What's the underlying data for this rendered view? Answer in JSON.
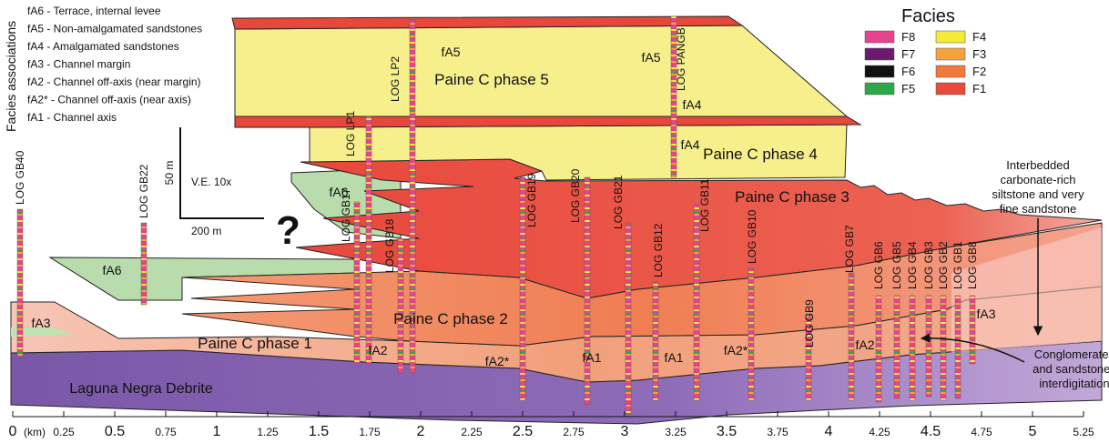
{
  "facies_associations": {
    "title": "Facies associations",
    "items": [
      "fA6 - Terrace, internal levee",
      "fA5 - Non-amalgamated sandstones",
      "fA4 - Amalgamated sandstones",
      "fA3 - Channel margin",
      "fA2 - Channel off-axis (near margin)",
      "fA2* - Channel off-axis (near axis)",
      "fA1 - Channel axis"
    ]
  },
  "facies_legend": {
    "title": "Facies",
    "items": [
      {
        "label": "F8",
        "color": "#e8438f"
      },
      {
        "label": "F7",
        "color": "#6b1a70"
      },
      {
        "label": "F6",
        "color": "#111111"
      },
      {
        "label": "F5",
        "color": "#2aa84a"
      },
      {
        "label": "F4",
        "color": "#f3ea3a"
      },
      {
        "label": "F3",
        "color": "#f5a23e"
      },
      {
        "label": "F2",
        "color": "#f07a3c"
      },
      {
        "label": "F1",
        "color": "#e84b3c"
      }
    ]
  },
  "units": [
    "Paine C phase 5",
    "Paine C phase 4",
    "Paine C phase 3",
    "Paine C phase 2",
    "Paine C phase 1",
    "Laguna Negra Debrite"
  ],
  "association_labels": [
    "fA5",
    "fA5",
    "fA4",
    "fA4",
    "fA6",
    "fA6",
    "fA3",
    "fA2",
    "fA2*",
    "fA1",
    "fA1",
    "fA2*",
    "fA2",
    "fA3"
  ],
  "logs": [
    "LOG GB40",
    "LOG GB22",
    "LOG LP1",
    "LOG LP2",
    "LOG GB17",
    "LOG GB18",
    "LOG GB19",
    "LOG GB20",
    "LOG GB21",
    "LOG GB12",
    "LOG GB11",
    "LOG PANGB",
    "LOG GB10",
    "LOG GB9",
    "LOG GB7",
    "LOG GB6",
    "LOG GB5",
    "LOG GB4",
    "LOG GB3",
    "LOG GB2",
    "LOG GB1",
    "LOG GB8"
  ],
  "question_mark": "?",
  "scale_bar": {
    "vertical": "50 m",
    "exaggeration": "V.E. 10x",
    "horizontal": "200 m"
  },
  "annotations": [
    {
      "lines": [
        "Interbedded",
        "carbonate-rich",
        "siltstone and  very",
        "fine sandstone"
      ]
    },
    {
      "lines": [
        "Conglomerates",
        "and sandstones",
        "interdigitation"
      ]
    }
  ],
  "axis": {
    "unit": "(km)",
    "ticks": [
      0,
      0.25,
      0.5,
      0.75,
      1,
      1.25,
      1.5,
      1.75,
      2,
      2.25,
      2.5,
      2.75,
      3,
      3.25,
      3.5,
      3.75,
      4,
      4.25,
      4.5,
      4.75,
      5,
      5.25
    ]
  }
}
